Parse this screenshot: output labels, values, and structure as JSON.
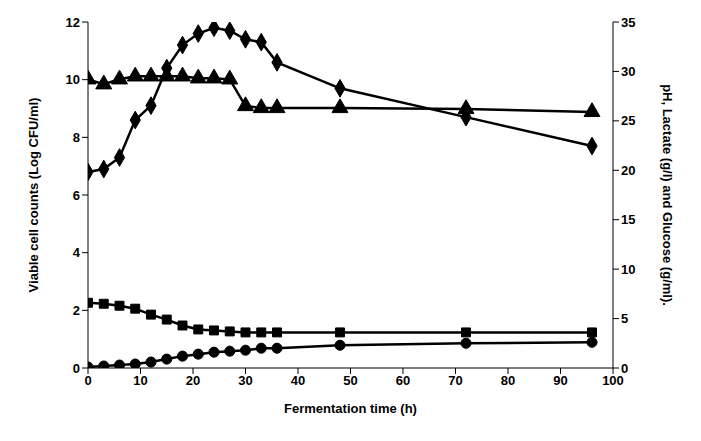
{
  "chart_data": {
    "type": "line",
    "x_label": "Fermentation time (h)",
    "y_label": "Viable cell counts (Log CFU/ml)",
    "y2_label": "pH, Lactate (g/l) and Glucose (g/ml).",
    "x": [
      0,
      3,
      6,
      9,
      12,
      15,
      18,
      21,
      24,
      27,
      30,
      33,
      36,
      48,
      72,
      96
    ],
    "xlim": [
      0,
      100
    ],
    "xticks": [
      0,
      10,
      20,
      30,
      40,
      50,
      60,
      70,
      80,
      90,
      100
    ],
    "ylim": [
      0,
      12
    ],
    "yticks": [
      0,
      2,
      4,
      6,
      8,
      10,
      12
    ],
    "y2lim": [
      0,
      35
    ],
    "y2ticks": [
      0,
      5,
      10,
      15,
      20,
      25,
      30,
      35
    ],
    "grid": false,
    "series": [
      {
        "color": "#000000",
        "marker": "diamond",
        "axis": "y",
        "values": [
          6.8,
          6.9,
          7.3,
          8.6,
          9.1,
          10.4,
          11.2,
          11.6,
          11.8,
          11.7,
          11.4,
          11.3,
          10.6,
          9.7,
          8.7,
          7.7
        ]
      },
      {
        "color": "#000000",
        "marker": "triangle",
        "axis": "y2",
        "values": [
          29.2,
          28.7,
          29.2,
          29.5,
          29.5,
          29.5,
          29.5,
          29.3,
          29.3,
          29.2,
          26.5,
          26.3,
          26.3,
          26.3,
          26.2,
          25.9
        ]
      },
      {
        "color": "#000000",
        "marker": "square",
        "axis": "y2",
        "values": [
          6.6,
          6.5,
          6.3,
          6.0,
          5.4,
          4.9,
          4.3,
          3.9,
          3.8,
          3.7,
          3.6,
          3.6,
          3.6,
          3.6,
          3.6,
          3.6
        ]
      },
      {
        "color": "#000000",
        "marker": "circle",
        "axis": "y2",
        "values": [
          0.1,
          0.2,
          0.3,
          0.4,
          0.6,
          0.9,
          1.2,
          1.4,
          1.6,
          1.7,
          1.8,
          2.0,
          2.0,
          2.3,
          2.5,
          2.6
        ]
      }
    ]
  }
}
